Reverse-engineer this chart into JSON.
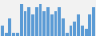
{
  "values": [
    3,
    1,
    5,
    1,
    1,
    9,
    7,
    8,
    6,
    8,
    9,
    7,
    8,
    6,
    7,
    8,
    5,
    1,
    3,
    4,
    6,
    3,
    2,
    6,
    8
  ],
  "bar_color": "#5b9bd5",
  "background_color": "#f2f2f2",
  "ylim": [
    0,
    10
  ],
  "bar_width": 0.8
}
